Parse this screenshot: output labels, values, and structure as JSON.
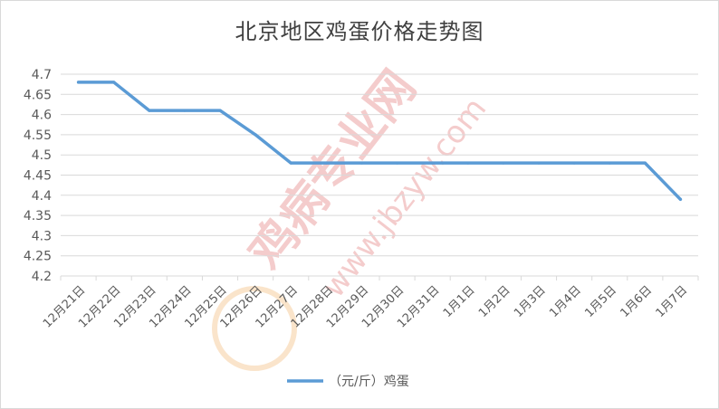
{
  "chart_data": {
    "type": "line",
    "title": "北京地区鸡蛋价格走势图",
    "xlabel": "",
    "ylabel": "",
    "categories": [
      "12月21日",
      "12月22日",
      "12月23日",
      "12月24日",
      "12月25日",
      "12月26日",
      "12月27日",
      "12月28日",
      "12月29日",
      "12月30日",
      "12月31日",
      "1月1日",
      "1月2日",
      "1月3日",
      "1月4日",
      "1月5日",
      "1月6日",
      "1月7日"
    ],
    "series": [
      {
        "name": "（元/斤）鸡蛋",
        "color": "#5b9bd5",
        "values": [
          4.68,
          4.68,
          4.61,
          4.61,
          4.61,
          4.55,
          4.48,
          4.48,
          4.48,
          4.48,
          4.48,
          4.48,
          4.48,
          4.48,
          4.48,
          4.48,
          4.48,
          4.39
        ]
      }
    ],
    "ylim": [
      4.2,
      4.7
    ],
    "yticks": [
      "4.2",
      "4.25",
      "4.3",
      "4.35",
      "4.4",
      "4.45",
      "4.5",
      "4.55",
      "4.6",
      "4.65",
      "4.7"
    ],
    "grid": true,
    "legend": "bottom"
  },
  "watermark": {
    "text_main": "鸡病专业网",
    "text_url": "www.jbzyw.com"
  },
  "colors": {
    "line": "#5b9bd5",
    "grid": "#d9d9d9",
    "text": "#595959",
    "watermark": "#e8a0a0"
  }
}
